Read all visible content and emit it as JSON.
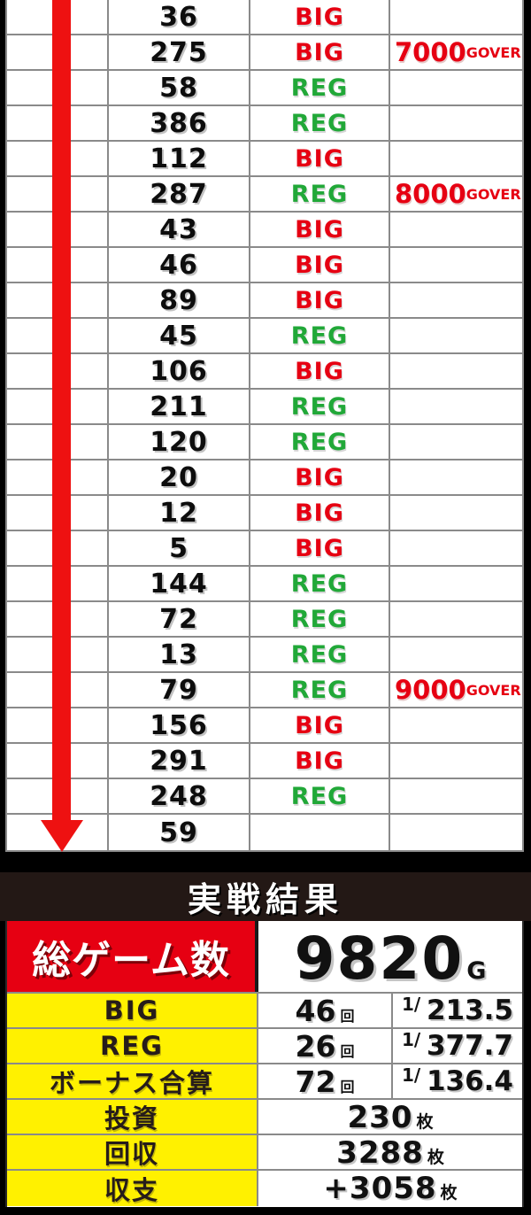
{
  "chart_data": {
    "type": "table",
    "columns": [
      "games_since_last_bonus",
      "bonus_type",
      "milestone"
    ],
    "rows": [
      {
        "games": "36",
        "bonus": "BIG",
        "milestone_num": "",
        "milestone_suffix": ""
      },
      {
        "games": "275",
        "bonus": "BIG",
        "milestone_num": "7000",
        "milestone_suffix": "GOVER"
      },
      {
        "games": "58",
        "bonus": "REG",
        "milestone_num": "",
        "milestone_suffix": ""
      },
      {
        "games": "386",
        "bonus": "REG",
        "milestone_num": "",
        "milestone_suffix": ""
      },
      {
        "games": "112",
        "bonus": "BIG",
        "milestone_num": "",
        "milestone_suffix": ""
      },
      {
        "games": "287",
        "bonus": "REG",
        "milestone_num": "8000",
        "milestone_suffix": "GOVER"
      },
      {
        "games": "43",
        "bonus": "BIG",
        "milestone_num": "",
        "milestone_suffix": ""
      },
      {
        "games": "46",
        "bonus": "BIG",
        "milestone_num": "",
        "milestone_suffix": ""
      },
      {
        "games": "89",
        "bonus": "BIG",
        "milestone_num": "",
        "milestone_suffix": ""
      },
      {
        "games": "45",
        "bonus": "REG",
        "milestone_num": "",
        "milestone_suffix": ""
      },
      {
        "games": "106",
        "bonus": "BIG",
        "milestone_num": "",
        "milestone_suffix": ""
      },
      {
        "games": "211",
        "bonus": "REG",
        "milestone_num": "",
        "milestone_suffix": ""
      },
      {
        "games": "120",
        "bonus": "REG",
        "milestone_num": "",
        "milestone_suffix": ""
      },
      {
        "games": "20",
        "bonus": "BIG",
        "milestone_num": "",
        "milestone_suffix": ""
      },
      {
        "games": "12",
        "bonus": "BIG",
        "milestone_num": "",
        "milestone_suffix": ""
      },
      {
        "games": "5",
        "bonus": "BIG",
        "milestone_num": "",
        "milestone_suffix": ""
      },
      {
        "games": "144",
        "bonus": "REG",
        "milestone_num": "",
        "milestone_suffix": ""
      },
      {
        "games": "72",
        "bonus": "REG",
        "milestone_num": "",
        "milestone_suffix": ""
      },
      {
        "games": "13",
        "bonus": "REG",
        "milestone_num": "",
        "milestone_suffix": ""
      },
      {
        "games": "79",
        "bonus": "REG",
        "milestone_num": "9000",
        "milestone_suffix": "GOVER"
      },
      {
        "games": "156",
        "bonus": "BIG",
        "milestone_num": "",
        "milestone_suffix": ""
      },
      {
        "games": "291",
        "bonus": "BIG",
        "milestone_num": "",
        "milestone_suffix": ""
      },
      {
        "games": "248",
        "bonus": "REG",
        "milestone_num": "",
        "milestone_suffix": ""
      },
      {
        "games": "59",
        "bonus": "",
        "milestone_num": "",
        "milestone_suffix": ""
      }
    ]
  },
  "summary": {
    "header": "実戦結果",
    "total_games": {
      "label": "総ゲーム数",
      "value": "9820",
      "unit": "G"
    },
    "stat_rows": [
      {
        "label": "BIG",
        "count": "46",
        "count_unit": "回",
        "rate_prefix": "1/",
        "rate": "213.5"
      },
      {
        "label": "REG",
        "count": "26",
        "count_unit": "回",
        "rate_prefix": "1/",
        "rate": "377.7"
      },
      {
        "label": "ボーナス合算",
        "count": "72",
        "count_unit": "回",
        "rate_prefix": "1/",
        "rate": "136.4"
      }
    ],
    "value_rows": [
      {
        "label": "投資",
        "value": "230",
        "unit": "枚"
      },
      {
        "label": "回収",
        "value": "3288",
        "unit": "枚"
      },
      {
        "label": "収支",
        "value": "+3058",
        "unit": "枚"
      }
    ]
  },
  "colors": {
    "big": "#e60012",
    "reg": "#21a838",
    "arrow_red": "#ee1111",
    "total_row_red": "#e60012",
    "label_yellow": "#fff100",
    "header_bg": "#231815",
    "grid_line": "#8a8a8a",
    "page_bg": "#000000"
  }
}
